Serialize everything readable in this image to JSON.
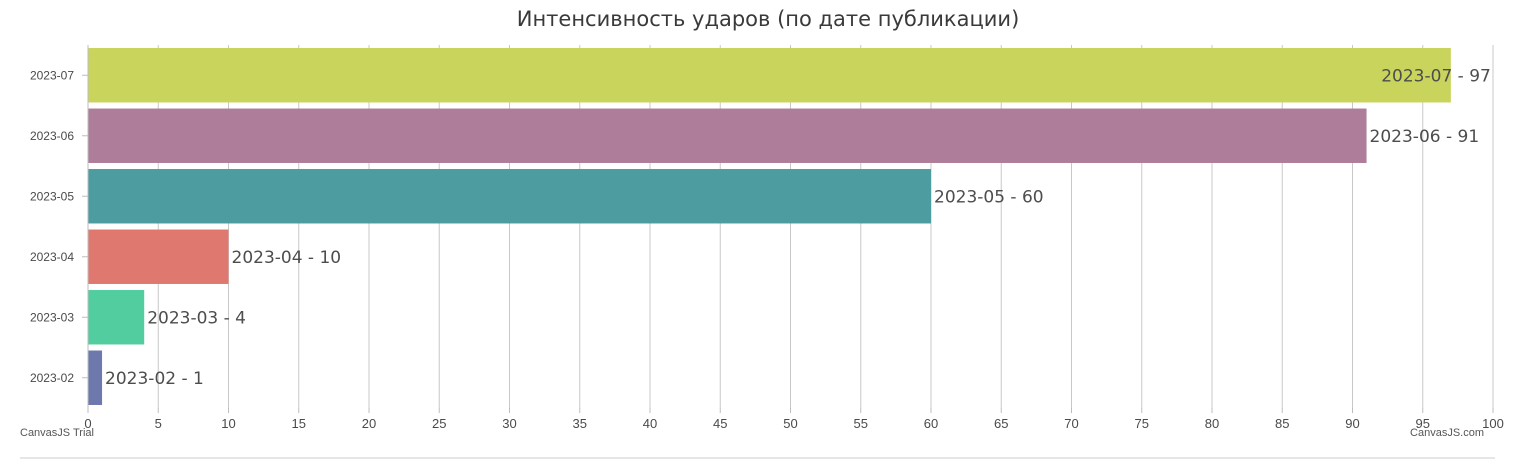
{
  "chart_data": {
    "type": "bar",
    "orientation": "horizontal",
    "title": "Интенсивность ударов (по дате публикации)",
    "categories": [
      "2023-02",
      "2023-03",
      "2023-04",
      "2023-05",
      "2023-06",
      "2023-07"
    ],
    "values": [
      1,
      4,
      10,
      60,
      91,
      97
    ],
    "data_labels": [
      "2023-02 - 1",
      "2023-03 - 4",
      "2023-04 - 10",
      "2023-05 - 60",
      "2023-06 - 91",
      "2023-07 - 97"
    ],
    "colors": [
      "#6D78AD",
      "#51CDA0",
      "#DF7970",
      "#4C9CA0",
      "#AE7D99",
      "#C9D45C"
    ],
    "xlim": [
      0,
      100
    ],
    "x_ticks": [
      0,
      5,
      10,
      15,
      20,
      25,
      30,
      35,
      40,
      45,
      50,
      55,
      60,
      65,
      70,
      75,
      80,
      85,
      90,
      95,
      100
    ],
    "grid": true
  },
  "credits": {
    "trial": "CanvasJS Trial",
    "site": "CanvasJS.com"
  }
}
